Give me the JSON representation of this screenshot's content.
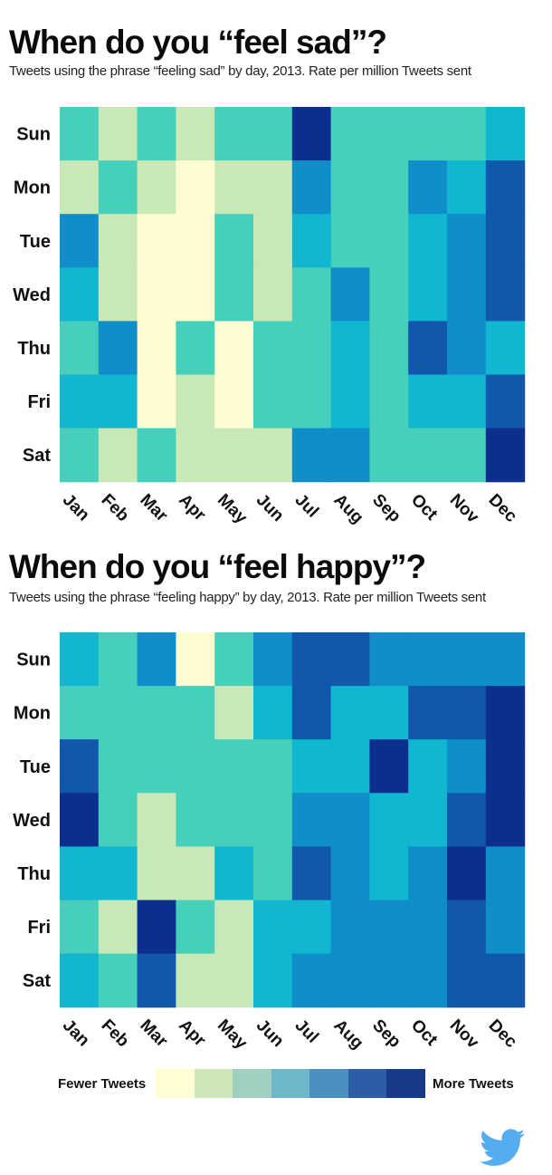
{
  "colors": {
    "scale": [
      "#fdfdd1",
      "#c8e9b5",
      "#46cfba",
      "#11b6d0",
      "#0f8ec9",
      "#1157ab",
      "#0c2f8f"
    ],
    "legend_swatches": [
      "#fefed2",
      "#cde6b8",
      "#9ecfc0",
      "#6eb6c9",
      "#4a8fbf",
      "#2d5ea5",
      "#163a88"
    ]
  },
  "legend": {
    "low_label": "Fewer Tweets",
    "high_label": "More Tweets"
  },
  "chart_data": [
    {
      "type": "heatmap",
      "title": "When do you “feel sad”?",
      "subtitle": "Tweets using the phrase “feeling sad” by day, 2013. Rate per million Tweets sent",
      "x_categories": [
        "Jan",
        "Feb",
        "Mar",
        "Apr",
        "May",
        "Jun",
        "Jul",
        "Aug",
        "Sep",
        "Oct",
        "Nov",
        "Dec"
      ],
      "y_categories": [
        "Sun",
        "Mon",
        "Tue",
        "Wed",
        "Thu",
        "Fri",
        "Sat"
      ],
      "value_scale": "relative level 0 (fewer tweets) to 6 (more tweets)",
      "values": [
        [
          2,
          1,
          2,
          1,
          2,
          2,
          6,
          2,
          2,
          2,
          2,
          3
        ],
        [
          1,
          2,
          1,
          0,
          1,
          1,
          4,
          2,
          2,
          4,
          3,
          5
        ],
        [
          4,
          1,
          0,
          0,
          2,
          1,
          3,
          2,
          2,
          3,
          4,
          5
        ],
        [
          3,
          1,
          0,
          0,
          2,
          1,
          2,
          4,
          2,
          3,
          4,
          5
        ],
        [
          2,
          4,
          0,
          2,
          0,
          2,
          2,
          3,
          2,
          5,
          4,
          3
        ],
        [
          3,
          3,
          0,
          1,
          0,
          2,
          2,
          3,
          2,
          3,
          3,
          5
        ],
        [
          2,
          1,
          2,
          1,
          1,
          1,
          4,
          4,
          2,
          2,
          2,
          6
        ]
      ]
    },
    {
      "type": "heatmap",
      "title": "When do you “feel happy”?",
      "subtitle": "Tweets using the phrase “feeling happy” by day, 2013. Rate per million Tweets sent",
      "x_categories": [
        "Jan",
        "Feb",
        "Mar",
        "Apr",
        "May",
        "Jun",
        "Jul",
        "Aug",
        "Sep",
        "Oct",
        "Nov",
        "Dec"
      ],
      "y_categories": [
        "Sun",
        "Mon",
        "Tue",
        "Wed",
        "Thu",
        "Fri",
        "Sat"
      ],
      "value_scale": "relative level 0 (fewer tweets) to 6 (more tweets)",
      "values": [
        [
          3,
          2,
          4,
          0,
          2,
          4,
          5,
          5,
          4,
          4,
          4,
          4
        ],
        [
          2,
          2,
          2,
          2,
          1,
          3,
          5,
          3,
          3,
          5,
          5,
          6
        ],
        [
          5,
          2,
          2,
          2,
          2,
          2,
          3,
          3,
          6,
          3,
          4,
          6
        ],
        [
          6,
          2,
          1,
          2,
          2,
          2,
          4,
          4,
          3,
          3,
          5,
          6
        ],
        [
          3,
          3,
          1,
          1,
          3,
          2,
          5,
          4,
          3,
          4,
          6,
          4
        ],
        [
          2,
          1,
          6,
          2,
          1,
          3,
          3,
          4,
          4,
          4,
          5,
          4
        ],
        [
          3,
          2,
          5,
          1,
          1,
          3,
          4,
          4,
          4,
          4,
          5,
          5
        ]
      ]
    }
  ]
}
